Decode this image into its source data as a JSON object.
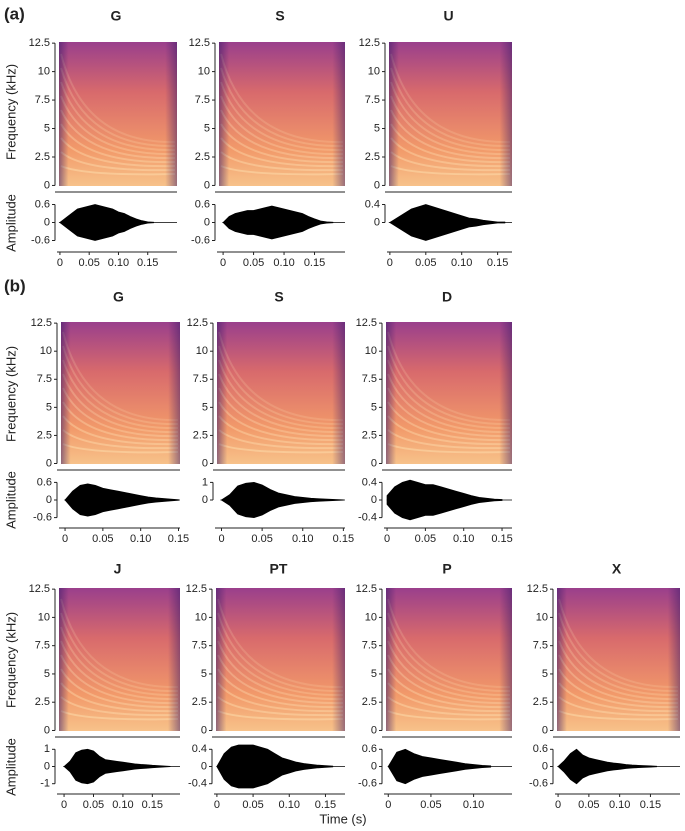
{
  "figure": {
    "panel_labels": [
      "(a)",
      "(b)"
    ],
    "freq_label": "Frequency (kHz)",
    "amp_label": "Amplitude",
    "time_label": "Time (s)"
  },
  "chart_data": [
    {
      "type": "spectrogram",
      "title": "G",
      "ylim": [
        -0.4,
        12.6
      ],
      "yticks": [
        0,
        2.5,
        5,
        7.5,
        10,
        12.5
      ],
      "waveform": {
        "xlim": [
          -0.005,
          0.2
        ],
        "xticks": [
          0,
          0.05,
          {
            "value": 0.1,
            "label": "0.10"
          },
          0.15
        ],
        "ylim": [
          -0.75,
          0.75
        ],
        "yticks": [
          -0.6,
          0,
          0.6
        ],
        "x": [
          0,
          0.01,
          0.02,
          0.03,
          0.04,
          0.05,
          0.06,
          0.07,
          0.08,
          0.09,
          0.1,
          0.11,
          0.12,
          0.13,
          0.14,
          0.15,
          0.16
        ],
        "values": [
          0,
          0.15,
          0.3,
          0.45,
          0.5,
          0.55,
          0.6,
          0.55,
          0.5,
          0.45,
          0.35,
          0.3,
          0.2,
          0.12,
          0.06,
          0.02,
          0.01
        ]
      }
    },
    {
      "type": "spectrogram",
      "title": "S",
      "ylim": [
        -0.4,
        12.6
      ],
      "yticks": [
        0,
        2.5,
        5,
        7.5,
        10,
        12.5
      ],
      "waveform": {
        "xlim": [
          -0.01,
          0.2
        ],
        "xticks": [
          0,
          0.05,
          {
            "value": 0.1,
            "label": "0.10"
          },
          0.15
        ],
        "ylim": [
          -0.75,
          0.75
        ],
        "yticks": [
          -0.6,
          0,
          0.6
        ],
        "x": [
          0,
          0.01,
          0.02,
          0.03,
          0.04,
          0.05,
          0.06,
          0.07,
          0.08,
          0.09,
          0.1,
          0.11,
          0.12,
          0.13,
          0.14,
          0.15,
          0.16,
          0.17,
          0.18
        ],
        "values": [
          0,
          0.2,
          0.3,
          0.35,
          0.4,
          0.4,
          0.45,
          0.5,
          0.55,
          0.5,
          0.45,
          0.4,
          0.35,
          0.3,
          0.2,
          0.12,
          0.05,
          0.02,
          0.01
        ]
      }
    },
    {
      "type": "spectrogram",
      "title": "U",
      "ylim": [
        -0.4,
        12.6
      ],
      "yticks": [
        0,
        2.5,
        5,
        7.5,
        10,
        12.5
      ],
      "waveform": {
        "xlim": [
          -0.004,
          0.17
        ],
        "xticks": [
          0,
          0.05,
          {
            "value": 0.1,
            "label": "0.10"
          },
          0.15
        ],
        "ylim": [
          -0.5,
          0.5
        ],
        "yticks": [
          0,
          0.4
        ],
        "x": [
          0,
          0.01,
          0.02,
          0.03,
          0.04,
          0.05,
          0.06,
          0.07,
          0.08,
          0.09,
          0.1,
          0.11,
          0.12,
          0.13,
          0.14,
          0.15,
          0.16
        ],
        "values": [
          0,
          0.1,
          0.2,
          0.3,
          0.35,
          0.4,
          0.35,
          0.3,
          0.25,
          0.2,
          0.15,
          0.1,
          0.08,
          0.05,
          0.03,
          0.01,
          0.01
        ]
      }
    },
    {
      "type": "spectrogram",
      "title": "G",
      "ylim": [
        -0.4,
        12.6
      ],
      "yticks": [
        0,
        2.5,
        5,
        7.5,
        10,
        12.5
      ],
      "waveform": {
        "xlim": [
          -0.008,
          0.152
        ],
        "xticks": [
          0,
          0.05,
          {
            "value": 0.1,
            "label": "0.10"
          },
          0.15
        ],
        "ylim": [
          -0.75,
          0.75
        ],
        "yticks": [
          -0.6,
          0,
          0.6
        ],
        "x": [
          0,
          0.01,
          0.02,
          0.03,
          0.04,
          0.05,
          0.06,
          0.07,
          0.08,
          0.09,
          0.1,
          0.11,
          0.12,
          0.13,
          0.14,
          0.15
        ],
        "values": [
          0,
          0.3,
          0.5,
          0.55,
          0.5,
          0.4,
          0.35,
          0.3,
          0.25,
          0.2,
          0.15,
          0.1,
          0.07,
          0.05,
          0.03,
          0.01
        ]
      }
    },
    {
      "type": "spectrogram",
      "title": "S",
      "ylim": [
        -0.4,
        12.6
      ],
      "yticks": [
        0,
        2.5,
        5,
        7.5,
        10,
        12.5
      ],
      "waveform": {
        "xlim": [
          -0.008,
          0.152
        ],
        "xticks": [
          0,
          0.05,
          {
            "value": 0.1,
            "label": "0.10"
          },
          0.15
        ],
        "ylim": [
          -1.25,
          1.25
        ],
        "yticks": [
          0,
          1
        ],
        "x": [
          0,
          0.01,
          0.02,
          0.03,
          0.04,
          0.05,
          0.06,
          0.07,
          0.08,
          0.09,
          0.1,
          0.11,
          0.12,
          0.13,
          0.14,
          0.15
        ],
        "values": [
          0,
          0.3,
          0.8,
          0.95,
          1.0,
          0.85,
          0.6,
          0.4,
          0.3,
          0.2,
          0.15,
          0.1,
          0.07,
          0.05,
          0.03,
          0.01
        ]
      }
    },
    {
      "type": "spectrogram",
      "title": "D",
      "ylim": [
        -0.4,
        12.6
      ],
      "yticks": [
        0,
        2.5,
        5,
        7.5,
        10,
        12.5
      ],
      "waveform": {
        "xlim": [
          -0.004,
          0.163
        ],
        "xticks": [
          0,
          0.05,
          {
            "value": 0.1,
            "label": "0.10"
          },
          0.15
        ],
        "ylim": [
          -0.5,
          0.5
        ],
        "yticks": [
          -0.4,
          0,
          0.4
        ],
        "x": [
          0,
          0.01,
          0.02,
          0.03,
          0.04,
          0.05,
          0.06,
          0.07,
          0.08,
          0.09,
          0.1,
          0.11,
          0.12,
          0.13,
          0.14,
          0.15
        ],
        "values": [
          0.1,
          0.3,
          0.4,
          0.45,
          0.4,
          0.35,
          0.35,
          0.3,
          0.25,
          0.2,
          0.15,
          0.1,
          0.06,
          0.04,
          0.02,
          0.01
        ]
      }
    },
    {
      "type": "spectrogram",
      "title": "J",
      "ylim": [
        -0.4,
        12.6
      ],
      "yticks": [
        0,
        2.5,
        5,
        7.5,
        10,
        12.5
      ],
      "waveform": {
        "xlim": [
          -0.012,
          0.197
        ],
        "xticks": [
          0,
          0.05,
          {
            "value": 0.1,
            "label": "0.10"
          },
          0.15
        ],
        "ylim": [
          -1.25,
          1.25
        ],
        "yticks": [
          -1,
          0,
          1
        ],
        "x": [
          0,
          0.01,
          0.02,
          0.03,
          0.04,
          0.05,
          0.06,
          0.07,
          0.08,
          0.09,
          0.1,
          0.11,
          0.12,
          0.13,
          0.14,
          0.15,
          0.16,
          0.17,
          0.18
        ],
        "values": [
          0,
          0.3,
          0.8,
          0.95,
          1.0,
          0.9,
          0.6,
          0.4,
          0.35,
          0.3,
          0.25,
          0.2,
          0.15,
          0.12,
          0.1,
          0.07,
          0.05,
          0.03,
          0.01
        ]
      }
    },
    {
      "type": "spectrogram",
      "title": "PT",
      "ylim": [
        -0.4,
        12.6
      ],
      "yticks": [
        0,
        2.5,
        5,
        7.5,
        10,
        12.5
      ],
      "waveform": {
        "xlim": [
          -0.004,
          0.177
        ],
        "xticks": [
          0,
          0.05,
          {
            "value": 0.1,
            "label": "0.10"
          },
          0.15
        ],
        "ylim": [
          -0.5,
          0.5
        ],
        "yticks": [
          -0.4,
          0,
          0.4
        ],
        "x": [
          0,
          0.01,
          0.02,
          0.03,
          0.04,
          0.05,
          0.06,
          0.07,
          0.08,
          0.09,
          0.1,
          0.11,
          0.12,
          0.13,
          0.14,
          0.15,
          0.16
        ],
        "values": [
          0,
          0.3,
          0.45,
          0.5,
          0.5,
          0.5,
          0.45,
          0.4,
          0.3,
          0.2,
          0.15,
          0.1,
          0.07,
          0.05,
          0.03,
          0.02,
          0.01
        ]
      }
    },
    {
      "type": "spectrogram",
      "title": "P",
      "ylim": [
        -0.4,
        12.6
      ],
      "yticks": [
        0,
        2.5,
        5,
        7.5,
        10,
        12.5
      ],
      "waveform": {
        "xlim": [
          -0.005,
          0.145
        ],
        "xticks": [
          0,
          0.05,
          {
            "value": 0.1,
            "label": "0.10"
          }
        ],
        "ylim": [
          -0.75,
          0.75
        ],
        "yticks": [
          -0.6,
          0,
          0.6
        ],
        "x": [
          0,
          0.01,
          0.02,
          0.03,
          0.04,
          0.05,
          0.06,
          0.07,
          0.08,
          0.09,
          0.1,
          0.11,
          0.12
        ],
        "values": [
          0,
          0.5,
          0.6,
          0.45,
          0.35,
          0.3,
          0.25,
          0.2,
          0.15,
          0.1,
          0.07,
          0.04,
          0.02
        ]
      }
    },
    {
      "type": "spectrogram",
      "title": "X",
      "ylim": [
        -0.4,
        12.6
      ],
      "yticks": [
        0,
        2.5,
        5,
        7.5,
        10,
        12.5
      ],
      "waveform": {
        "xlim": [
          -0.005,
          0.198
        ],
        "xticks": [
          0,
          0.05,
          {
            "value": 0.1,
            "label": "0.10"
          },
          0.15
        ],
        "ylim": [
          -0.75,
          0.75
        ],
        "yticks": [
          -0.6,
          0,
          0.6
        ],
        "x": [
          0,
          0.01,
          0.02,
          0.03,
          0.04,
          0.05,
          0.06,
          0.07,
          0.08,
          0.09,
          0.1,
          0.11,
          0.12,
          0.13,
          0.14,
          0.15,
          0.16
        ],
        "values": [
          0,
          0.2,
          0.45,
          0.6,
          0.4,
          0.3,
          0.25,
          0.2,
          0.15,
          0.12,
          0.1,
          0.07,
          0.05,
          0.04,
          0.03,
          0.02,
          0.01
        ]
      }
    }
  ]
}
